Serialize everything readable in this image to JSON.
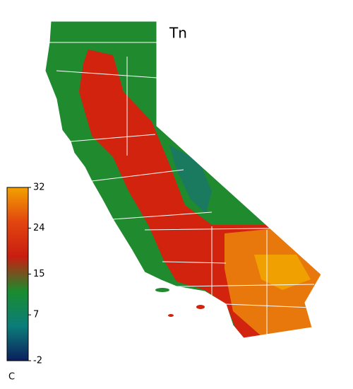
{
  "title": "Tn",
  "colorbar": {
    "ticks": [
      32,
      24,
      15,
      7,
      -2
    ],
    "unit": "C",
    "colors": [
      "#0b1f5c",
      "#0b7d7a",
      "#1a8c2e",
      "#c81e10",
      "#e2450f",
      "#f2a100"
    ]
  }
}
